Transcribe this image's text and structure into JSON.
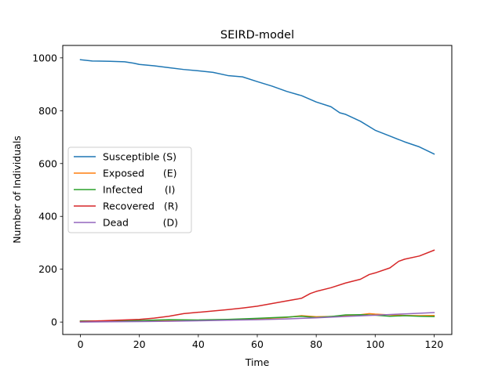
{
  "chart_data": {
    "type": "line",
    "title": "SEIRD-model",
    "xlabel": "Time",
    "ylabel": "Number of Individuals",
    "xlim": [
      -6,
      126
    ],
    "ylim": [
      -47,
      1047
    ],
    "xticks": [
      0,
      20,
      40,
      60,
      80,
      100,
      120
    ],
    "yticks": [
      0,
      200,
      400,
      600,
      800,
      1000
    ],
    "grid": false,
    "legend_placement": "center-left",
    "series": [
      {
        "name": "Susceptible (S)",
        "color": "#1f77b4",
        "x": [
          0,
          4,
          10,
          15,
          18,
          20,
          25,
          30,
          35,
          40,
          45,
          50,
          55,
          60,
          65,
          70,
          75,
          80,
          85,
          88,
          90,
          95,
          100,
          105,
          110,
          115,
          120
        ],
        "y": [
          993,
          988,
          987,
          985,
          980,
          975,
          970,
          963,
          956,
          951,
          945,
          933,
          928,
          910,
          893,
          873,
          857,
          833,
          815,
          792,
          786,
          760,
          726,
          704,
          682,
          663,
          636
        ]
      },
      {
        "name": "Exposed      (E)",
        "color": "#ff7f0e",
        "x": [
          0,
          10,
          20,
          30,
          40,
          50,
          60,
          70,
          75,
          80,
          85,
          90,
          95,
          98,
          100,
          105,
          110,
          115,
          120
        ],
        "y": [
          3,
          3,
          5,
          6,
          7,
          8,
          12,
          18,
          24,
          20,
          21,
          24,
          28,
          32,
          30,
          27,
          25,
          24,
          25
        ]
      },
      {
        "name": "Infected       (I)",
        "color": "#2ca02c",
        "x": [
          0,
          10,
          20,
          30,
          40,
          50,
          60,
          70,
          75,
          80,
          85,
          90,
          95,
          100,
          105,
          110,
          115,
          120
        ],
        "y": [
          4,
          4,
          6,
          9,
          8,
          10,
          14,
          19,
          22,
          17,
          21,
          27,
          28,
          26,
          22,
          24,
          22,
          21
        ]
      },
      {
        "name": "Recovered   (R)",
        "color": "#d62728",
        "x": [
          0,
          5,
          10,
          20,
          25,
          30,
          35,
          40,
          45,
          50,
          55,
          60,
          65,
          70,
          75,
          78,
          80,
          85,
          90,
          95,
          98,
          100,
          105,
          108,
          110,
          115,
          120
        ],
        "y": [
          2,
          4,
          6,
          10,
          15,
          22,
          32,
          37,
          42,
          47,
          53,
          60,
          70,
          80,
          90,
          108,
          116,
          130,
          148,
          162,
          180,
          186,
          205,
          230,
          238,
          250,
          272
        ]
      },
      {
        "name": "Dead           (D)",
        "color": "#9467bd",
        "x": [
          0,
          10,
          20,
          30,
          40,
          50,
          60,
          70,
          80,
          90,
          100,
          110,
          120
        ],
        "y": [
          0,
          1,
          2,
          3,
          5,
          7,
          9,
          12,
          16,
          21,
          26,
          31,
          36
        ]
      }
    ]
  }
}
